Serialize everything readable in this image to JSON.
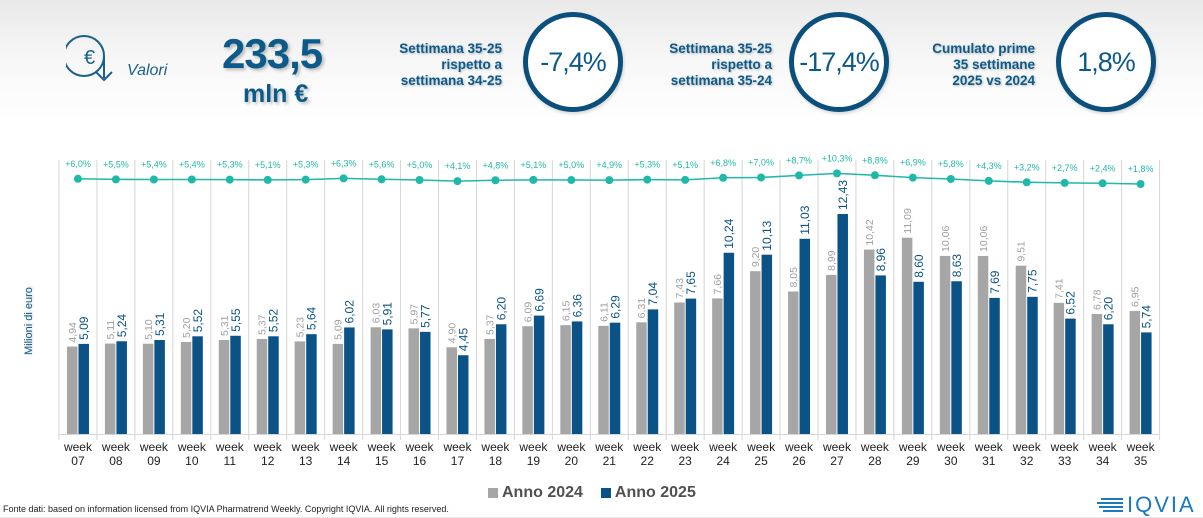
{
  "header": {
    "icon": "euro-down-icon",
    "valori_label": "Valori",
    "total_value": "233,5",
    "total_unit": "mln €",
    "kpis": [
      {
        "label_lines": [
          "Settimana 35-25",
          "rispetto a",
          "settimana 34-25"
        ],
        "value": "-7,4%"
      },
      {
        "label_lines": [
          "Settimana 35-25",
          "rispetto a",
          "settimana 35-24"
        ],
        "value": "-17,4%"
      },
      {
        "label_lines": [
          "Cumulato prime",
          "35 settimane",
          "2025 vs 2024"
        ],
        "value": "1,8%"
      }
    ]
  },
  "colors": {
    "series_2024": "#a6a6a6",
    "series_2025": "#0b5286",
    "line": "#20b8a8",
    "navy": "#0b5a8a"
  },
  "chart_data": {
    "type": "bar",
    "title": "",
    "xlabel": "",
    "ylabel": "Milioni di euro",
    "categories": [
      "week 07",
      "week 08",
      "week 09",
      "week 10",
      "week 11",
      "week 12",
      "week 13",
      "week 14",
      "week 15",
      "week 16",
      "week 17",
      "week 18",
      "week 19",
      "week 20",
      "week 21",
      "week 22",
      "week 23",
      "week 24",
      "week 25",
      "week 26",
      "week 27",
      "week 28",
      "week 29",
      "week 30",
      "week 31",
      "week 32",
      "week 33",
      "week 34",
      "week 35"
    ],
    "series": [
      {
        "name": "Anno 2024",
        "values": [
          4.94,
          5.11,
          5.1,
          5.2,
          5.31,
          5.37,
          5.23,
          5.09,
          6.03,
          5.97,
          4.9,
          5.37,
          6.09,
          6.15,
          6.11,
          6.31,
          7.43,
          7.66,
          9.2,
          8.05,
          8.99,
          10.42,
          11.09,
          10.06,
          10.06,
          9.51,
          7.41,
          6.78,
          6.95
        ]
      },
      {
        "name": "Anno 2025",
        "values": [
          5.09,
          5.24,
          5.31,
          5.52,
          5.55,
          5.52,
          5.64,
          6.02,
          5.91,
          5.77,
          4.45,
          6.2,
          6.69,
          6.36,
          6.29,
          7.04,
          7.65,
          10.24,
          10.13,
          11.03,
          12.43,
          8.96,
          8.6,
          8.63,
          7.69,
          7.75,
          6.52,
          6.2,
          5.74
        ]
      }
    ],
    "line_series": {
      "name": "Cumulato 2025 vs 2024",
      "values": [
        6.0,
        5.5,
        5.4,
        5.4,
        5.3,
        5.1,
        5.3,
        6.3,
        5.6,
        5.0,
        4.1,
        4.8,
        5.1,
        5.0,
        4.9,
        5.3,
        5.1,
        6.8,
        7.0,
        8.7,
        10.3,
        8.8,
        6.9,
        5.8,
        4.3,
        3.2,
        2.7,
        2.4,
        1.8
      ],
      "labels": [
        "+6,0%",
        "+5,5%",
        "+5,4%",
        "+5,4%",
        "+5,3%",
        "+5,1%",
        "+5,3%",
        "+6,3%",
        "+5,6%",
        "+5,0%",
        "+4,1%",
        "+4,8%",
        "+5,1%",
        "+5,0%",
        "+4,9%",
        "+5,3%",
        "+5,1%",
        "+6,8%",
        "+7,0%",
        "+8,7%",
        "+10,3%",
        "+8,8%",
        "+6,9%",
        "+5,8%",
        "+4,3%",
        "+3,2%",
        "+2,7%",
        "+2,4%",
        "+1,8%"
      ]
    },
    "value_labels_2024": [
      "4,94",
      "5,11",
      "5,10",
      "5,20",
      "5,31",
      "5,37",
      "5,23",
      "5,09",
      "6,03",
      "5,97",
      "4,90",
      "5,37",
      "6,09",
      "6,15",
      "6,11",
      "6,31",
      "7,43",
      "7,66",
      "9,20",
      "8,05",
      "8,99",
      "10,42",
      "11,09",
      "10,06",
      "10,06",
      "9,51",
      "7,41",
      "6,78",
      "6,95"
    ],
    "value_labels_2025": [
      "5,09",
      "5,24",
      "5,31",
      "5,52",
      "5,55",
      "5,52",
      "5,64",
      "6,02",
      "5,91",
      "5,77",
      "4,45",
      "6,20",
      "6,69",
      "6,36",
      "6,29",
      "7,04",
      "7,65",
      "10,24",
      "10,13",
      "11,03",
      "12,43",
      "8,96",
      "8,60",
      "8,63",
      "7,69",
      "7,75",
      "6,52",
      "6,20",
      "5,74"
    ],
    "ylim": [
      0,
      12.5
    ],
    "grid": "vertical",
    "legend": "bottom"
  },
  "legend": {
    "items": [
      {
        "label": "Anno 2024"
      },
      {
        "label": "Anno 2025"
      }
    ]
  },
  "footer": {
    "source": "Fonte dati: based on information licensed from IQVIA Pharmatrend Weekly. Copyright IQVIA. All rights reserved."
  },
  "logo": {
    "text": "IQVIA"
  }
}
